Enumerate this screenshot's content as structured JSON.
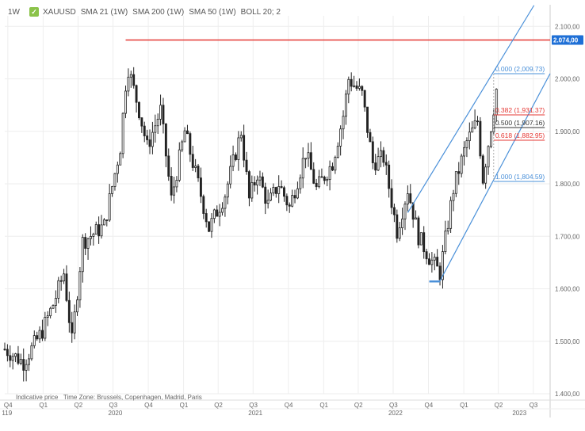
{
  "header": {
    "timeframe": "1W",
    "symbol": "XAUUSD",
    "indicators": [
      "SMA 21 (1W)",
      "SMA 200 (1W)",
      "SMA 50 (1W)",
      "BOLL 20; 2"
    ]
  },
  "footer_note": {
    "indicative": "Indicative price",
    "timezone": "Time Zone: Brussels, Copenhagen, Madrid, Paris"
  },
  "colors": {
    "up": "#ffffff",
    "down": "#222222",
    "wick": "#222222",
    "resistance": "#e53935",
    "channel": "#4a90d9",
    "fib_blue": "#4a90d9",
    "fib_red": "#e53935",
    "fib_black": "#333333",
    "grid": "#eeeeee",
    "axis_text": "#666666",
    "price_tag_bg": "#1e6fd6"
  },
  "chart_data": {
    "type": "candlestick",
    "title": "",
    "ylim": [
      1400,
      2120
    ],
    "y_ticks": [
      "2.100,00",
      "2.000,00",
      "1.900,00",
      "1.800,00",
      "1.700,00",
      "1.600,00",
      "1.500,00",
      "1.400,00"
    ],
    "y_tick_values": [
      2100,
      2000,
      1900,
      1800,
      1700,
      1600,
      1500,
      1400
    ],
    "xlim": [
      "2019-09-23",
      "2023-08-14"
    ],
    "x_ticks": [
      {
        "label": "Q4",
        "date": "2019-10-01"
      },
      {
        "label": "Q1",
        "date": "2020-01-01"
      },
      {
        "label": "Q2",
        "date": "2020-04-01"
      },
      {
        "label": "Q3",
        "date": "2020-07-01"
      },
      {
        "label": "Q4",
        "date": "2020-10-01"
      },
      {
        "label": "Q1",
        "date": "2021-01-01"
      },
      {
        "label": "Q2",
        "date": "2021-04-01"
      },
      {
        "label": "Q3",
        "date": "2021-07-01"
      },
      {
        "label": "Q4",
        "date": "2021-10-01"
      },
      {
        "label": "Q1",
        "date": "2022-01-01"
      },
      {
        "label": "Q2",
        "date": "2022-04-01"
      },
      {
        "label": "Q3",
        "date": "2022-07-01"
      },
      {
        "label": "Q4",
        "date": "2022-10-01"
      },
      {
        "label": "Q1",
        "date": "2023-01-01"
      },
      {
        "label": "Q2",
        "date": "2023-04-01"
      },
      {
        "label": "Q3",
        "date": "2023-07-01"
      }
    ],
    "year_labels": [
      {
        "label": "119",
        "date": "2019-09-28"
      },
      {
        "label": "2020",
        "date": "2020-07-01"
      },
      {
        "label": "2021",
        "date": "2021-07-01"
      },
      {
        "label": "2022",
        "date": "2022-07-01"
      },
      {
        "label": "2023",
        "date": "2023-05-20"
      }
    ],
    "anchors": [
      [
        "2019-09-23",
        1485
      ],
      [
        "2019-11-11",
        1460
      ],
      [
        "2019-12-30",
        1520
      ],
      [
        "2020-01-27",
        1570
      ],
      [
        "2020-02-24",
        1630
      ],
      [
        "2020-03-16",
        1500
      ],
      [
        "2020-04-13",
        1690
      ],
      [
        "2020-06-08",
        1720
      ],
      [
        "2020-07-20",
        1870
      ],
      [
        "2020-08-03",
        1990
      ],
      [
        "2020-08-10",
        2020
      ],
      [
        "2020-09-07",
        1940
      ],
      [
        "2020-09-28",
        1870
      ],
      [
        "2020-11-02",
        1940
      ],
      [
        "2020-11-30",
        1770
      ],
      [
        "2021-01-04",
        1900
      ],
      [
        "2021-02-08",
        1800
      ],
      [
        "2021-03-08",
        1715
      ],
      [
        "2021-04-19",
        1780
      ],
      [
        "2021-05-31",
        1900
      ],
      [
        "2021-06-21",
        1770
      ],
      [
        "2021-07-12",
        1820
      ],
      [
        "2021-08-09",
        1760
      ],
      [
        "2021-09-06",
        1800
      ],
      [
        "2021-10-04",
        1755
      ],
      [
        "2021-11-15",
        1860
      ],
      [
        "2021-12-13",
        1790
      ],
      [
        "2022-01-24",
        1840
      ],
      [
        "2022-02-21",
        1930
      ],
      [
        "2022-03-07",
        2000
      ],
      [
        "2022-04-11",
        1970
      ],
      [
        "2022-05-09",
        1840
      ],
      [
        "2022-06-06",
        1850
      ],
      [
        "2022-07-11",
        1710
      ],
      [
        "2022-08-08",
        1790
      ],
      [
        "2022-09-05",
        1700
      ],
      [
        "2022-10-03",
        1660
      ],
      [
        "2022-10-31",
        1630
      ],
      [
        "2022-12-05",
        1790
      ],
      [
        "2023-01-09",
        1880
      ],
      [
        "2023-02-06",
        1920
      ],
      [
        "2023-02-20",
        1810
      ],
      [
        "2023-03-13",
        1910
      ],
      [
        "2023-03-27",
        1980
      ]
    ],
    "resistance": {
      "value": 2074.0,
      "label": "2.074,00",
      "from": "2020-08-03",
      "to": "2023-08-14"
    },
    "fibonacci": {
      "from": "2023-03-20",
      "to": "2023-07-31",
      "levels": [
        {
          "ratio": "0.000",
          "value": 2009.73,
          "label": "0.000 (2,009.73)",
          "color": "blue"
        },
        {
          "ratio": "0.382",
          "value": 1931.37,
          "label": "0.382 (1,931.37)",
          "color": "red"
        },
        {
          "ratio": "0.500",
          "value": 1907.16,
          "label": "0.500 (1,907.16)",
          "color": "black"
        },
        {
          "ratio": "0.618",
          "value": 1882.95,
          "label": "0.618 (1,882.95)",
          "color": "red"
        },
        {
          "ratio": "1.000",
          "value": 1804.59,
          "label": "1.000 (1,804.59)",
          "color": "blue"
        }
      ]
    },
    "channel": {
      "lower": [
        [
          "2022-10-31",
          1615
        ],
        [
          "2023-08-14",
          2010
        ]
      ],
      "upper": [
        [
          "2022-08-08",
          1745
        ],
        [
          "2023-07-03",
          2140
        ]
      ]
    },
    "low_marker": {
      "from": "2022-10-03",
      "to": "2022-10-31",
      "value": 1614
    }
  }
}
